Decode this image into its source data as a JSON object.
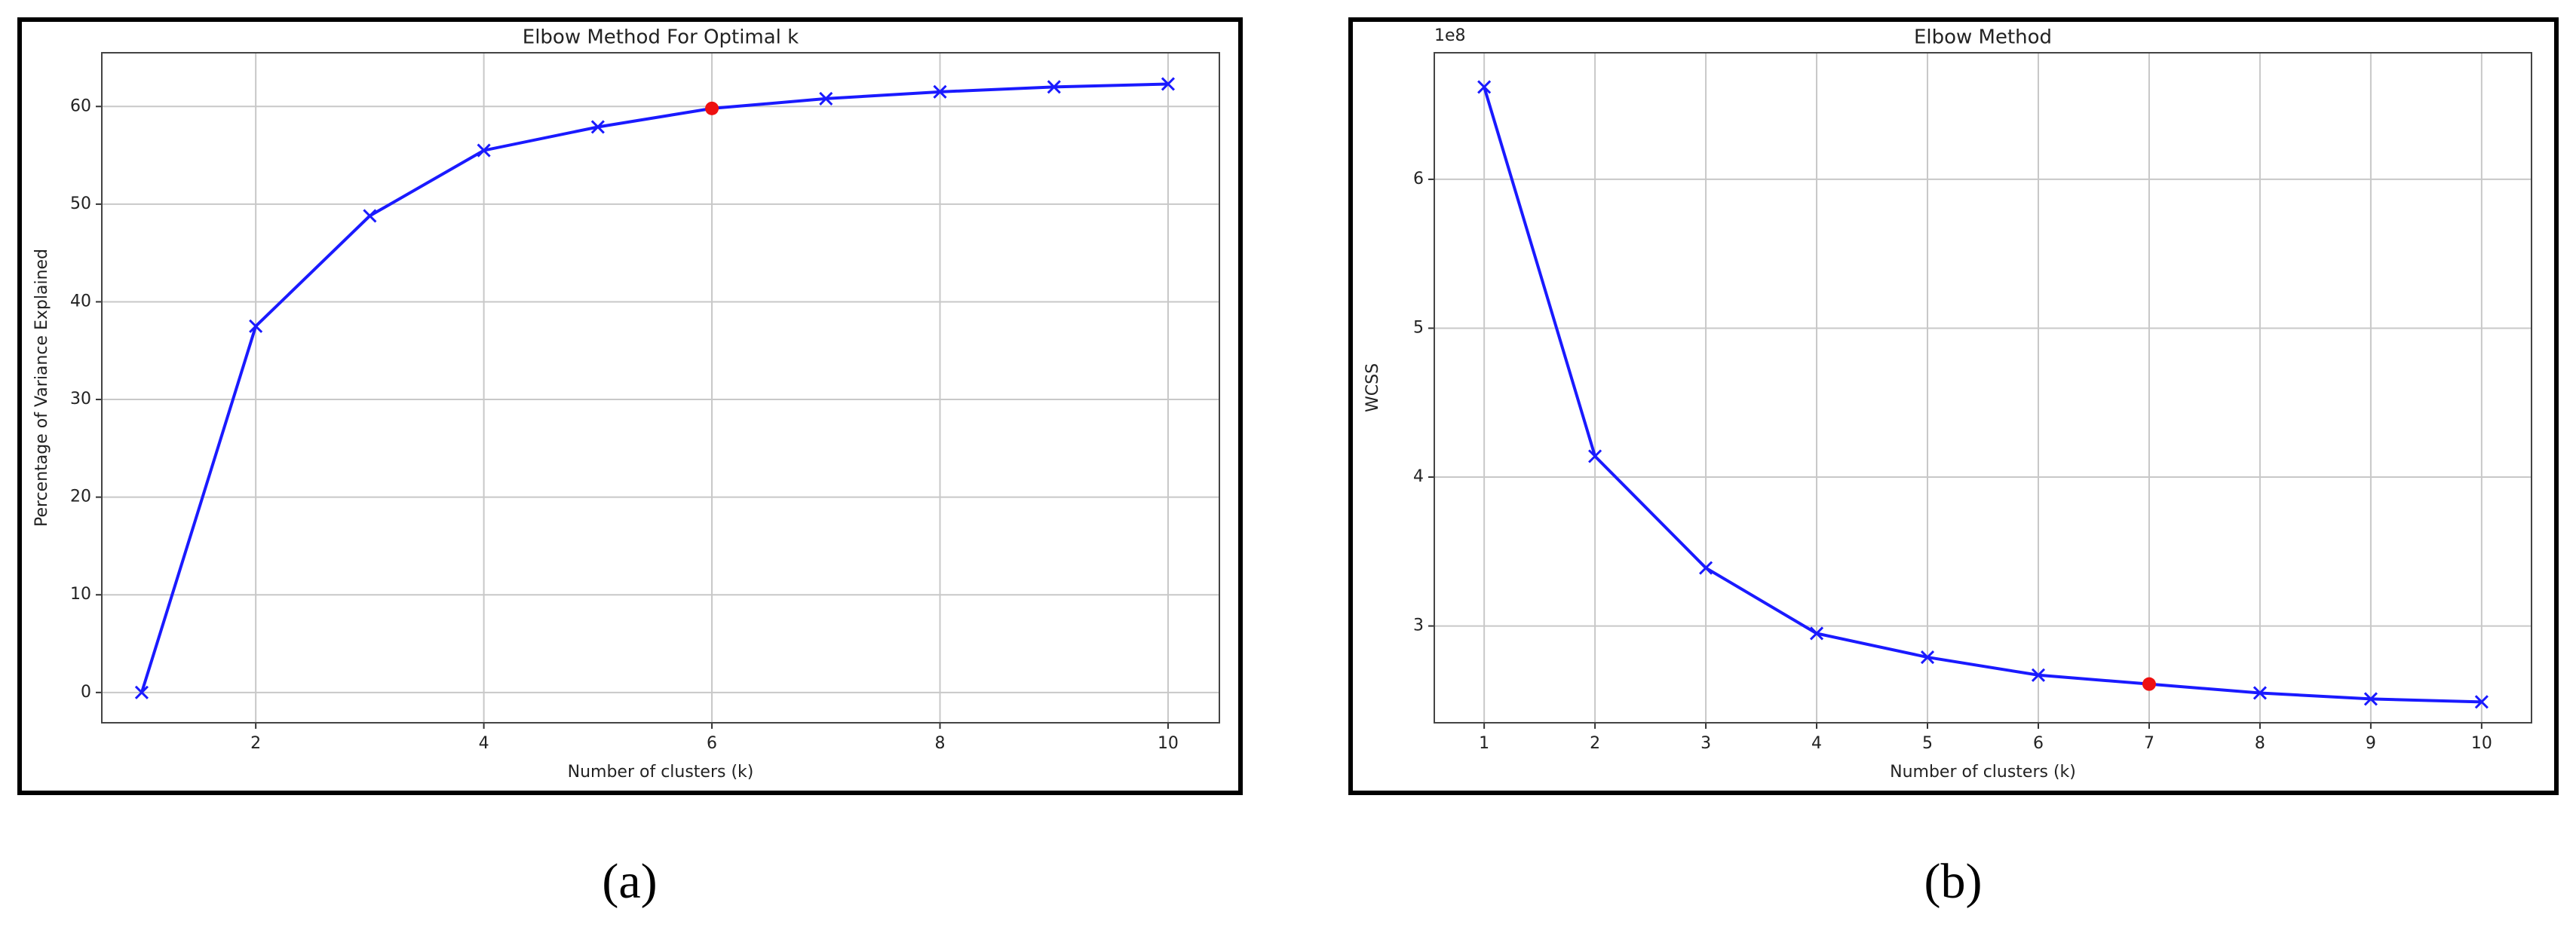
{
  "chart_data": [
    {
      "type": "line",
      "title": "Elbow Method For Optimal k",
      "x_label": "Number of clusters (k)",
      "y_label": "Percentage of Variance Explained",
      "x": [
        1,
        2,
        3,
        4,
        5,
        6,
        7,
        8,
        9,
        10
      ],
      "series": [
        {
          "color": "#1a1aff",
          "values": [
            0,
            37.5,
            48.8,
            55.5,
            57.9,
            59.8,
            60.8,
            61.5,
            62.0,
            62.3
          ]
        }
      ],
      "highlight_index": 5,
      "highlight_color": "#ee1111",
      "xlim": [
        0.65,
        10.45
      ],
      "ylim": [
        -3.1,
        65.5
      ],
      "xticks": [
        2,
        4,
        6,
        8,
        10
      ],
      "yticks": [
        0,
        10,
        20,
        30,
        40,
        50,
        60
      ],
      "grid": true,
      "caption": "(a)"
    },
    {
      "type": "line",
      "title": "Elbow Method",
      "x_label": "Number of clusters (k)",
      "y_label": "WCSS",
      "offset_text": "1e8",
      "x": [
        1,
        2,
        3,
        4,
        5,
        6,
        7,
        8,
        9,
        10
      ],
      "series": [
        {
          "color": "#1a1aff",
          "values": [
            6.62,
            4.14,
            3.39,
            2.95,
            2.79,
            2.67,
            2.61,
            2.55,
            2.51,
            2.49
          ]
        }
      ],
      "highlight_index": 6,
      "highlight_color": "#ee1111",
      "xlim": [
        0.55,
        10.45
      ],
      "ylim": [
        2.35,
        6.85
      ],
      "xticks": [
        1,
        2,
        3,
        4,
        5,
        6,
        7,
        8,
        9,
        10
      ],
      "yticks": [
        3,
        4,
        5,
        6
      ],
      "grid": true,
      "caption": "(b)"
    }
  ]
}
